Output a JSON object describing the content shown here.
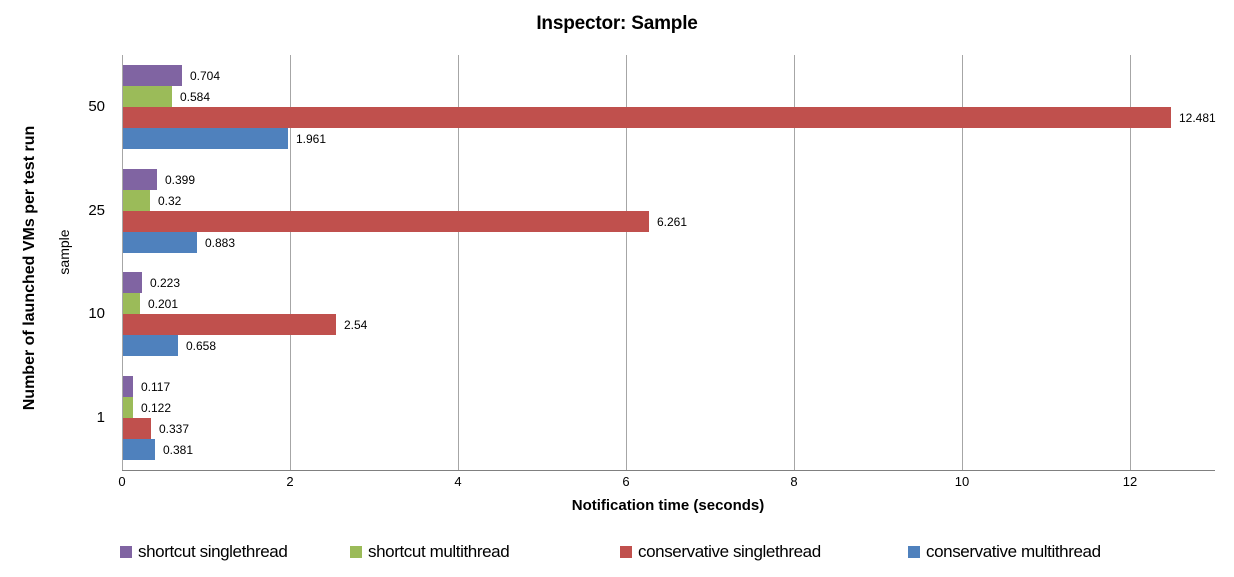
{
  "chart_data": {
    "type": "bar",
    "orientation": "horizontal",
    "title": "Inspector: Sample",
    "xlabel": "Notification time (seconds)",
    "ylabel": "Number of launched VMs per test run",
    "ylabel_inner": "sample",
    "categories": [
      "50",
      "25",
      "10",
      "1"
    ],
    "xlim": [
      0,
      13
    ],
    "xticks": [
      0,
      2,
      4,
      6,
      8,
      10,
      12
    ],
    "grid": "vertical-only",
    "legend_position": "bottom",
    "value_labels_shown": true,
    "series": [
      {
        "name": "shortcut singlethread",
        "color": "#8064A2",
        "values": [
          0.704,
          0.399,
          0.223,
          0.117
        ],
        "labels": [
          "0.704",
          "0.399",
          "0.223",
          "0.117"
        ]
      },
      {
        "name": "shortcut multithread",
        "color": "#9BBB59",
        "values": [
          0.584,
          0.32,
          0.201,
          0.122
        ],
        "labels": [
          "0.584",
          "0.32",
          "0.201",
          "0.122"
        ]
      },
      {
        "name": "conservative singlethread",
        "color": "#C0504D",
        "values": [
          12.481,
          6.261,
          2.54,
          0.337
        ],
        "labels": [
          "12.481",
          "6.261",
          "2.54",
          "0.337"
        ]
      },
      {
        "name": "conservative multithread",
        "color": "#4F81BD",
        "values": [
          1.961,
          0.883,
          0.658,
          0.381
        ],
        "labels": [
          "1.961",
          "0.883",
          "0.658",
          "0.381"
        ]
      }
    ],
    "colors": {
      "gridline": "#a6a6a6",
      "axis_line": "#808080",
      "text": "#000000",
      "background": "#ffffff"
    }
  }
}
